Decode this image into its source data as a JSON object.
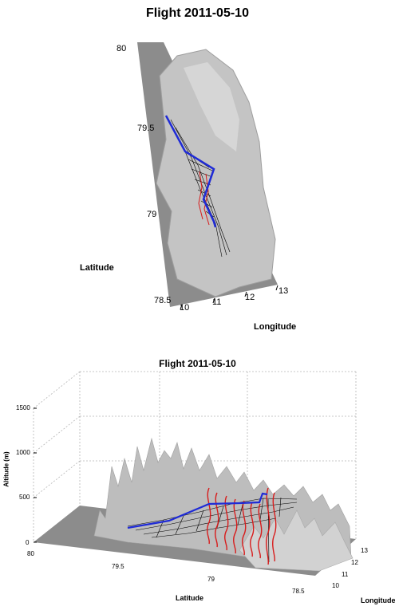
{
  "charts": [
    {
      "title": "Flight 2011-05-10",
      "xlabel": "Longitude",
      "ylabel": "Latitude",
      "lat_ticks": [
        "80",
        "79.5",
        "79",
        "78.5"
      ],
      "lon_ticks": [
        "10",
        "11",
        "12",
        "13"
      ]
    },
    {
      "title": "Flight 2011-05-10",
      "zlabel": "Altitude (m)",
      "xlabel": "Latitude",
      "ylabel": "Longitude",
      "alt_ticks": [
        "1500",
        "1000",
        "500",
        "0"
      ],
      "lat_ticks": [
        "80",
        "79.5",
        "79",
        "78.5"
      ],
      "lon_ticks": [
        "13",
        "12",
        "11",
        "10"
      ]
    }
  ],
  "colors": {
    "terrain": "#bdbdbd",
    "sea": "#8c8c8c",
    "flight_track": "#1f2bd6",
    "profiles": "#d81c1c",
    "curtain": "#000000"
  },
  "chart_data": [
    {
      "type": "3d-surface-map",
      "view": "top-down",
      "xlim": [
        10,
        13
      ],
      "ylim": [
        78.5,
        80
      ],
      "series": [
        {
          "name": "",
          "color": "#1f2bd6",
          "lat": [
            79.57,
            79.4,
            79.3,
            79.1,
            78.97
          ],
          "lon": [
            10.8,
            10.95,
            11.2,
            11.55,
            11.7
          ]
        }
      ]
    },
    {
      "type": "3d-surface-map",
      "view": "oblique",
      "zlim": [
        0,
        1500
      ],
      "xlim": [
        78.5,
        80
      ],
      "ylim": [
        10,
        13
      ],
      "series": [
        {
          "name": "",
          "color": "#1f2bd6",
          "lat": [
            79.57,
            79.4,
            79.3,
            79.1,
            78.97
          ],
          "altitude": [
            170,
            260,
            360,
            430,
            460
          ]
        },
        {
          "name": "",
          "color": "#d81c1c",
          "profiles": 9,
          "altitude_range": [
            60,
            630
          ]
        }
      ]
    }
  ]
}
